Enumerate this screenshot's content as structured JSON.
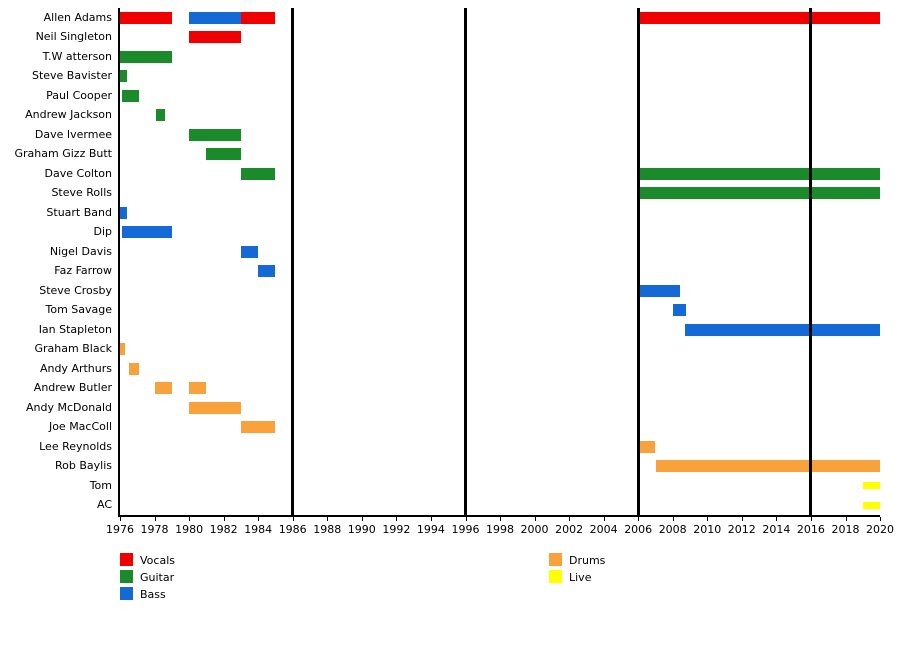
{
  "chart_data": {
    "type": "timeline",
    "title": "",
    "x_axis": {
      "min": 1976,
      "max": 2020,
      "ticks": [
        1976,
        1978,
        1980,
        1982,
        1984,
        1986,
        1988,
        1990,
        1992,
        1994,
        1996,
        1998,
        2000,
        2002,
        2004,
        2006,
        2008,
        2010,
        2012,
        2014,
        2016,
        2018,
        2020
      ]
    },
    "roles": [
      {
        "name": "Vocals",
        "color": "#f00000"
      },
      {
        "name": "Guitar",
        "color": "#1a8a2a"
      },
      {
        "name": "Bass",
        "color": "#1569d6"
      },
      {
        "name": "Drums",
        "color": "#f9a13b"
      },
      {
        "name": "Live",
        "color": "#ffff00"
      }
    ],
    "event_lines": [
      1986,
      1996,
      2006,
      2016
    ],
    "legend_columns": [
      [
        "Vocals",
        "Guitar",
        "Bass"
      ],
      [
        "Drums",
        "Live"
      ]
    ],
    "members": [
      {
        "name": "Allen Adams",
        "segments": [
          {
            "role": "Vocals",
            "start": 1976,
            "end": 1979
          },
          {
            "role": "Bass",
            "start": 1980,
            "end": 1983
          },
          {
            "role": "Vocals",
            "start": 1983,
            "end": 1985
          },
          {
            "role": "Vocals",
            "start": 2006,
            "end": 2020
          }
        ]
      },
      {
        "name": "Neil Singleton",
        "segments": [
          {
            "role": "Vocals",
            "start": 1980,
            "end": 1983
          }
        ]
      },
      {
        "name": "T.W atterson",
        "segments": [
          {
            "role": "Guitar",
            "start": 1976,
            "end": 1979
          }
        ]
      },
      {
        "name": "Steve Bavister",
        "segments": [
          {
            "role": "Guitar",
            "start": 1976,
            "end": 1976.4
          }
        ]
      },
      {
        "name": "Paul Cooper",
        "segments": [
          {
            "role": "Guitar",
            "start": 1976.1,
            "end": 1977.1
          }
        ]
      },
      {
        "name": "Andrew Jackson",
        "segments": [
          {
            "role": "Guitar",
            "start": 1978.1,
            "end": 1978.6
          }
        ]
      },
      {
        "name": "Dave Ivermee",
        "segments": [
          {
            "role": "Guitar",
            "start": 1980,
            "end": 1983
          }
        ]
      },
      {
        "name": "Graham Gizz Butt",
        "segments": [
          {
            "role": "Guitar",
            "start": 1981,
            "end": 1983
          }
        ]
      },
      {
        "name": "Dave Colton",
        "segments": [
          {
            "role": "Guitar",
            "start": 1983,
            "end": 1985
          },
          {
            "role": "Guitar",
            "start": 2006,
            "end": 2020
          }
        ]
      },
      {
        "name": "Steve Rolls",
        "segments": [
          {
            "role": "Guitar",
            "start": 2006,
            "end": 2020
          }
        ]
      },
      {
        "name": "Stuart Band",
        "segments": [
          {
            "role": "Bass",
            "start": 1976,
            "end": 1976.4
          }
        ]
      },
      {
        "name": "Dip",
        "segments": [
          {
            "role": "Bass",
            "start": 1976.1,
            "end": 1979
          }
        ]
      },
      {
        "name": "Nigel Davis",
        "segments": [
          {
            "role": "Bass",
            "start": 1983,
            "end": 1984
          }
        ]
      },
      {
        "name": "Faz Farrow",
        "segments": [
          {
            "role": "Bass",
            "start": 1984,
            "end": 1985
          }
        ]
      },
      {
        "name": "Steve Crosby",
        "segments": [
          {
            "role": "Bass",
            "start": 2006,
            "end": 2008.4
          }
        ]
      },
      {
        "name": "Tom Savage",
        "segments": [
          {
            "role": "Bass",
            "start": 2008,
            "end": 2008.8
          }
        ]
      },
      {
        "name": "Ian Stapleton",
        "segments": [
          {
            "role": "Bass",
            "start": 2008.7,
            "end": 2020
          }
        ]
      },
      {
        "name": "Graham Black",
        "segments": [
          {
            "role": "Drums",
            "start": 1976,
            "end": 1976.3
          }
        ]
      },
      {
        "name": "Andy Arthurs",
        "segments": [
          {
            "role": "Drums",
            "start": 1976.5,
            "end": 1977.1
          }
        ]
      },
      {
        "name": "Andrew Butler",
        "segments": [
          {
            "role": "Drums",
            "start": 1978,
            "end": 1979
          },
          {
            "role": "Drums",
            "start": 1980,
            "end": 1981
          }
        ]
      },
      {
        "name": "Andy McDonald",
        "segments": [
          {
            "role": "Drums",
            "start": 1980,
            "end": 1983
          }
        ]
      },
      {
        "name": "Joe MacColl",
        "segments": [
          {
            "role": "Drums",
            "start": 1983,
            "end": 1985
          }
        ]
      },
      {
        "name": "Lee Reynolds",
        "segments": [
          {
            "role": "Drums",
            "start": 2006,
            "end": 2007
          }
        ]
      },
      {
        "name": "Rob Baylis",
        "segments": [
          {
            "role": "Drums",
            "start": 2007,
            "end": 2020
          }
        ]
      },
      {
        "name": "Tom",
        "segments": [
          {
            "role": "Live",
            "start": 2019,
            "end": 2020
          }
        ]
      },
      {
        "name": "AC",
        "segments": [
          {
            "role": "Live",
            "start": 2019,
            "end": 2020
          }
        ]
      }
    ]
  }
}
